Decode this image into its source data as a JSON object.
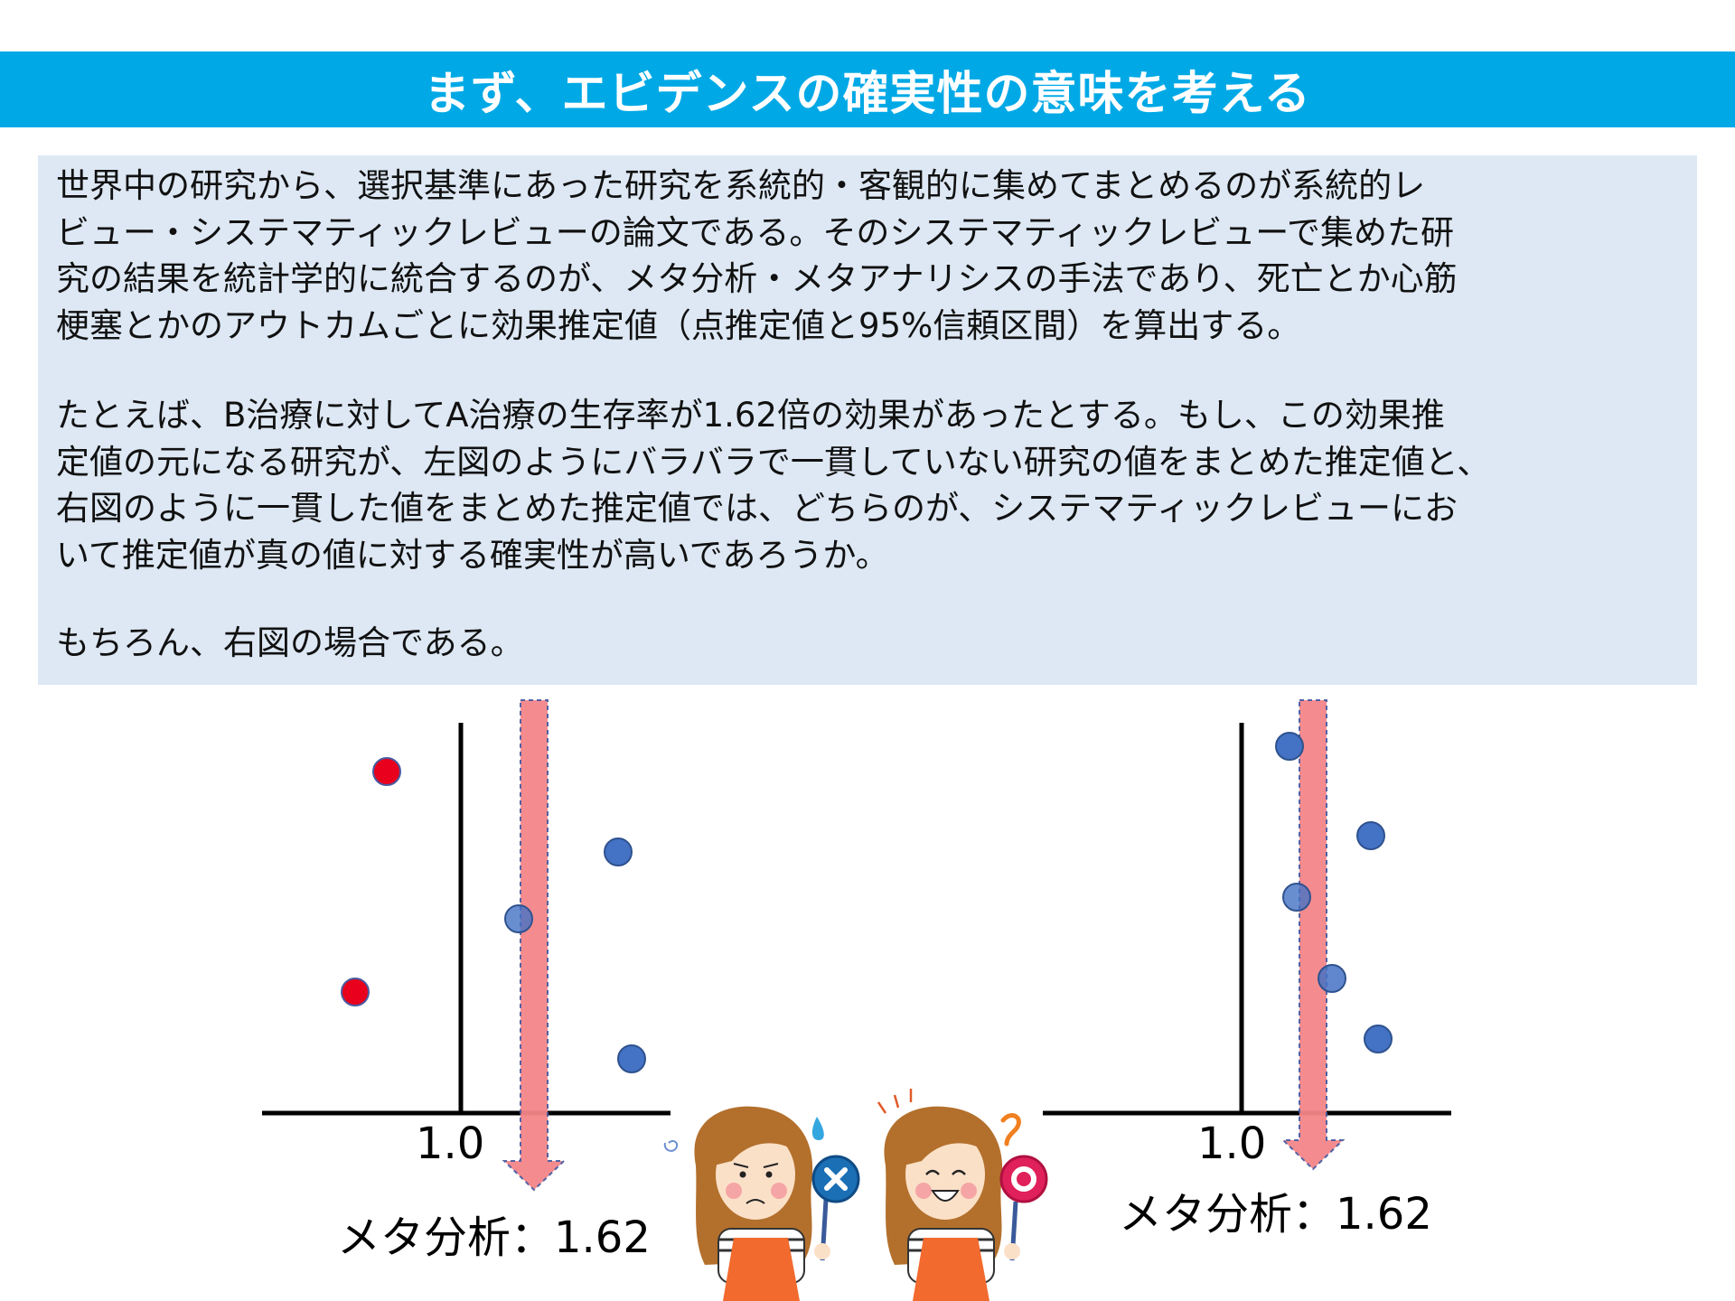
{
  "title": "まず、エビデンスの確実性の意味を考える",
  "paragraphs": [
    "世界中の研究から、選択基準にあった研究を系統的・客観的に集めてまとめるのが系統的レ\nビュー・システマティックレビューの論文である。そのシステマティックレビューで集めた研\n究の結果を統計学的に統合するのが、メタ分析・メタアナリシスの手法であり、死亡とか心筋\n梗塞とかのアウトカムごとに効果推定値（点推定値と95%信頼区間）を算出する。",
    "たとえば、B治療に対してA治療の生存率が1.62倍の効果があったとする。もし、この効果推\n定値の元になる研究が、左図のようにバラバラで一貫していない研究の値をまとめた推定値と、\n右図のように一貫した値をまとめた推定値では、どちらのが、システマティックレビューにお\nいて推定値が真の値に対する確実性が高いであろうか。",
    "もちろん、右図の場合である。"
  ],
  "figures": {
    "left": {
      "tick_label": "1.0",
      "caption": "メタ分析：1.62",
      "red_points": 2,
      "blue_points": 3
    },
    "right": {
      "tick_label": "1.0",
      "caption": "メタ分析：1.62",
      "blue_points": 5
    }
  },
  "colors": {
    "title_bar": "#00a9e6",
    "text_box": "#dde8f4",
    "arrow": "#f4868a",
    "blue_point": "#4472c4",
    "red_point": "#e8001c",
    "apron": "#f26a2e"
  },
  "icons": [
    "worried-woman-cross-sign",
    "smiling-woman-circle-sign"
  ]
}
